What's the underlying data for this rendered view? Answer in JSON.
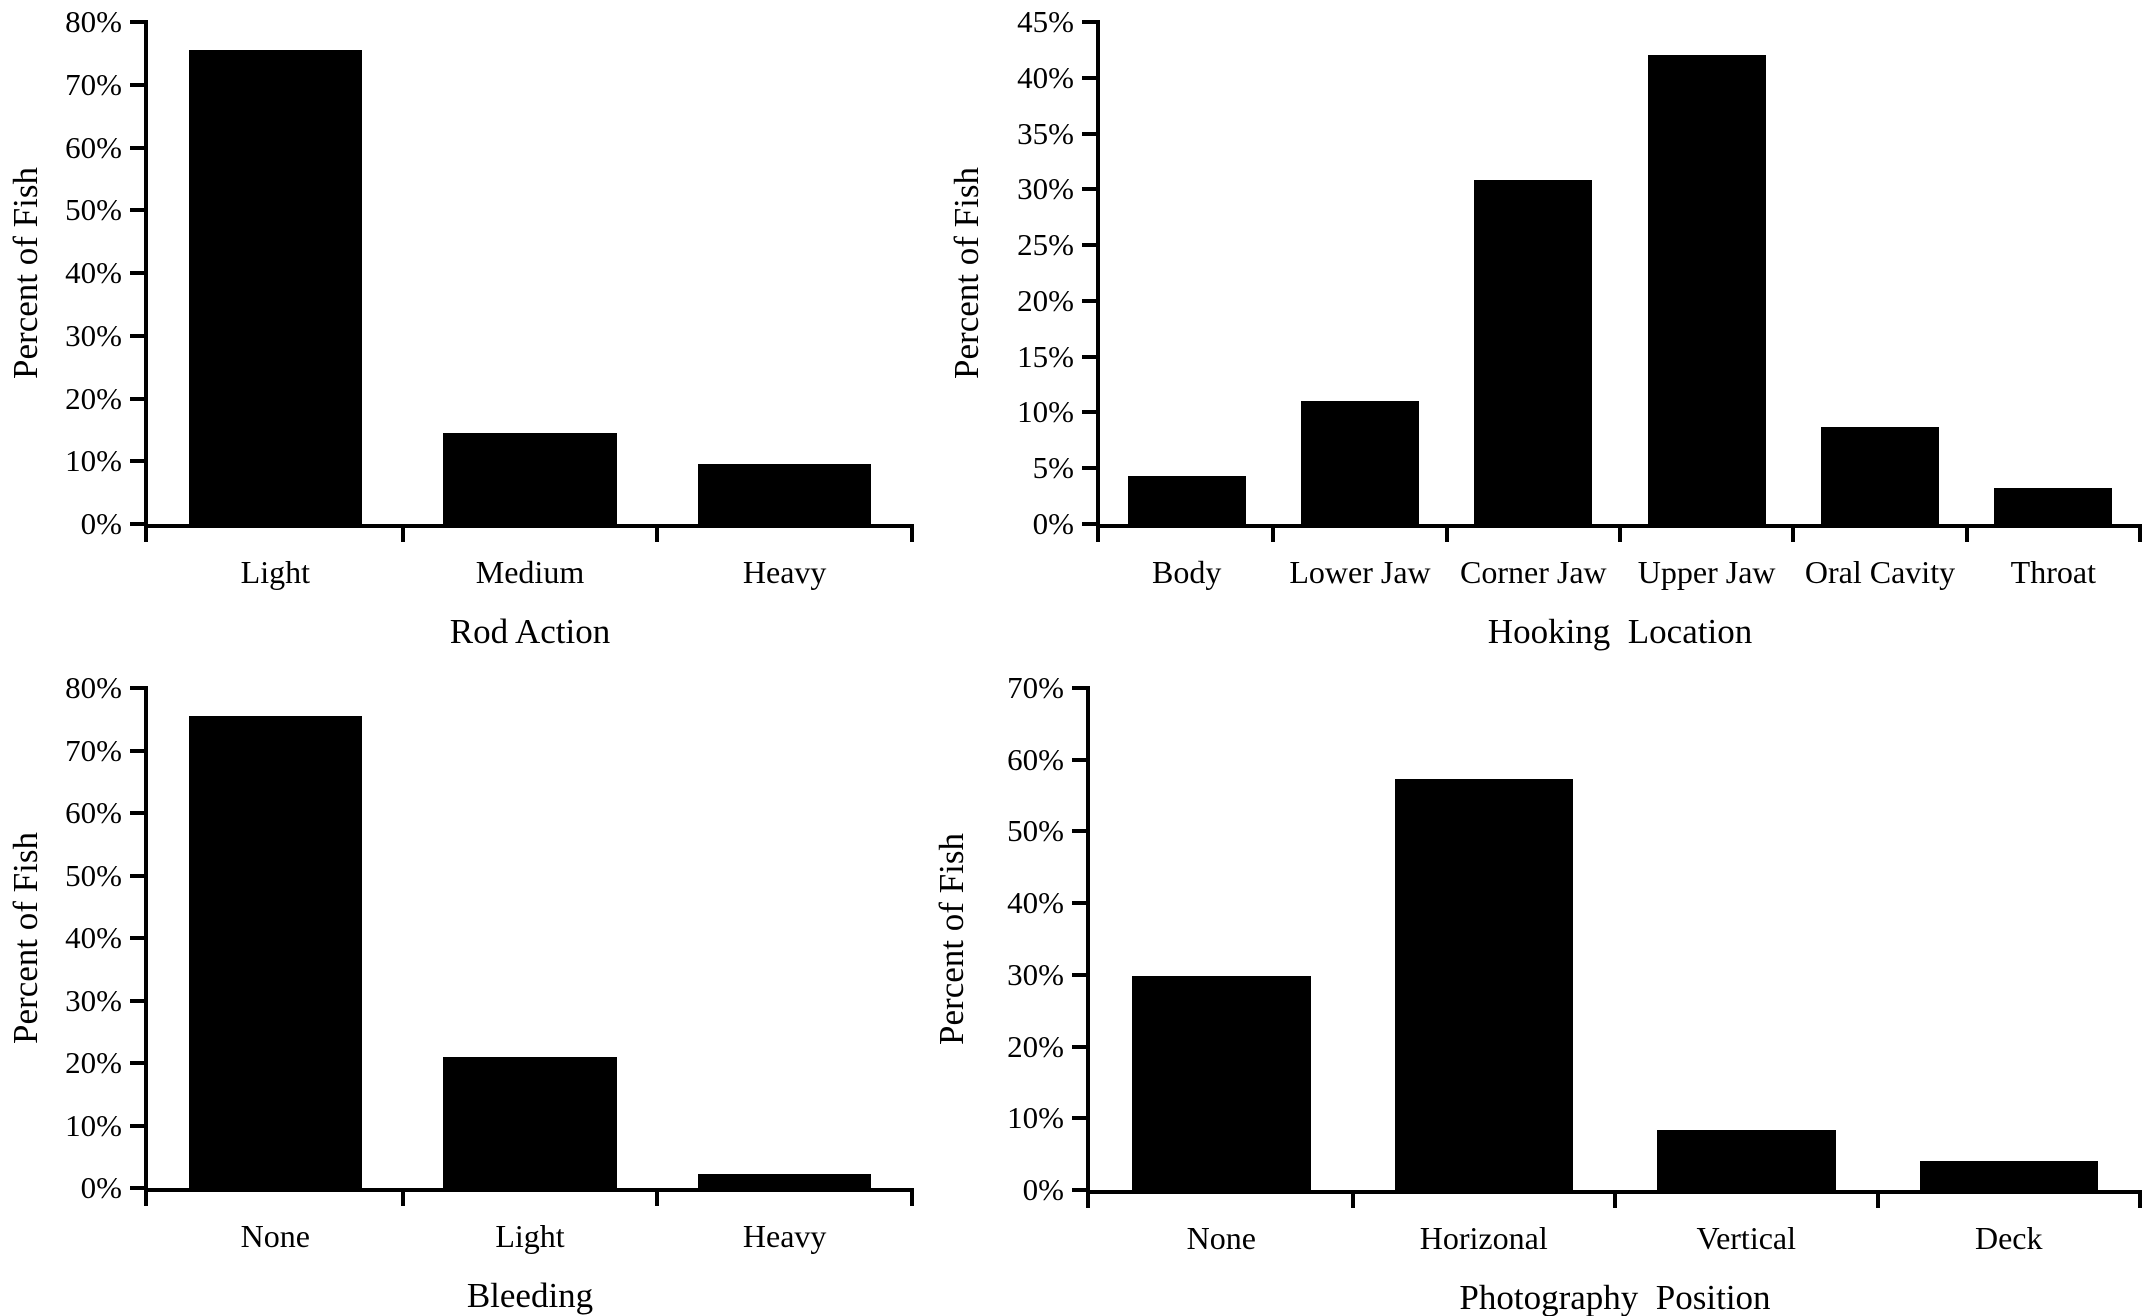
{
  "colors": {
    "bar": "#000000",
    "axis": "#000000",
    "text": "#000000",
    "background": "#ffffff"
  },
  "chart_data": [
    {
      "type": "bar",
      "title": "",
      "xlabel": "Rod Action",
      "ylabel": "Percent of Fish",
      "categories": [
        "Light",
        "Medium",
        "Heavy"
      ],
      "values": [
        75.5,
        14.5,
        9.5
      ],
      "ylim": [
        0,
        80
      ],
      "ytick_step": 10,
      "ytick_labels": [
        "0%",
        "10%",
        "20%",
        "30%",
        "40%",
        "50%",
        "60%",
        "70%",
        "80%"
      ],
      "grid": false,
      "legend": "none"
    },
    {
      "type": "bar",
      "title": "",
      "xlabel": "Hooking  Location",
      "ylabel": "Percent of Fish",
      "categories": [
        "Body",
        "Lower Jaw",
        "Corner Jaw",
        "Upper Jaw",
        "Oral Cavity",
        "Throat"
      ],
      "values": [
        4.3,
        11,
        30.8,
        42,
        8.7,
        3.2
      ],
      "ylim": [
        0,
        45
      ],
      "ytick_step": 5,
      "ytick_labels": [
        "0%",
        "5%",
        "10%",
        "15%",
        "20%",
        "25%",
        "30%",
        "35%",
        "40%",
        "45%"
      ],
      "grid": false,
      "legend": "none"
    },
    {
      "type": "bar",
      "title": "",
      "xlabel": "Bleeding",
      "ylabel": "Percent of Fish",
      "categories": [
        "None",
        "Light",
        "Heavy"
      ],
      "values": [
        75.5,
        21,
        2.2
      ],
      "ylim": [
        0,
        80
      ],
      "ytick_step": 10,
      "ytick_labels": [
        "0%",
        "10%",
        "20%",
        "30%",
        "40%",
        "50%",
        "60%",
        "70%",
        "80%"
      ],
      "grid": false,
      "legend": "none"
    },
    {
      "type": "bar",
      "title": "",
      "xlabel": "Photography  Position",
      "ylabel": "Percent of Fish",
      "categories": [
        "None",
        "Horizonal",
        "Vertical",
        "Deck"
      ],
      "values": [
        29.8,
        57.3,
        8.3,
        4
      ],
      "ylim": [
        0,
        70
      ],
      "ytick_step": 10,
      "ytick_labels": [
        "0%",
        "10%",
        "20%",
        "30%",
        "40%",
        "50%",
        "60%",
        "70%"
      ],
      "grid": false,
      "legend": "none"
    }
  ]
}
